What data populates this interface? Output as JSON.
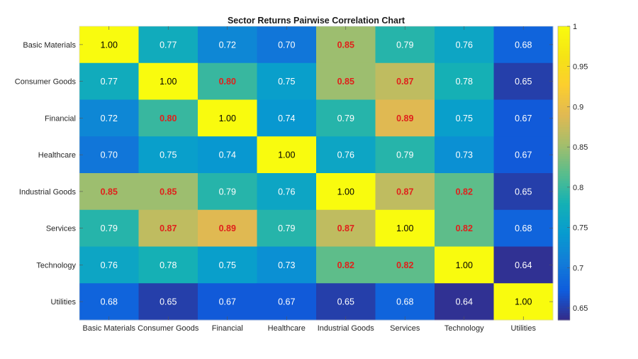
{
  "chart_data": {
    "type": "heatmap",
    "title": "Sector Returns Pairwise Correlation Chart",
    "xlabel": "",
    "ylabel": "",
    "x_categories": [
      "Basic Materials",
      "Consumer Goods",
      "Financial",
      "Healthcare",
      "Industrial Goods",
      "Services",
      "Technology",
      "Utilities"
    ],
    "y_categories": [
      "Basic Materials",
      "Consumer Goods",
      "Financial",
      "Healthcare",
      "Industrial Goods",
      "Services",
      "Technology",
      "Utilities"
    ],
    "values": [
      [
        1.0,
        0.77,
        0.72,
        0.7,
        0.85,
        0.79,
        0.76,
        0.68
      ],
      [
        0.77,
        1.0,
        0.8,
        0.75,
        0.85,
        0.87,
        0.78,
        0.65
      ],
      [
        0.72,
        0.8,
        1.0,
        0.74,
        0.79,
        0.89,
        0.75,
        0.67
      ],
      [
        0.7,
        0.75,
        0.74,
        1.0,
        0.76,
        0.79,
        0.73,
        0.67
      ],
      [
        0.85,
        0.85,
        0.79,
        0.76,
        1.0,
        0.87,
        0.82,
        0.65
      ],
      [
        0.79,
        0.87,
        0.89,
        0.79,
        0.87,
        1.0,
        0.82,
        0.68
      ],
      [
        0.76,
        0.78,
        0.75,
        0.73,
        0.82,
        0.82,
        1.0,
        0.64
      ],
      [
        0.68,
        0.65,
        0.67,
        0.67,
        0.65,
        0.68,
        0.64,
        1.0
      ]
    ],
    "labels": [
      [
        "1.00",
        "0.77",
        "0.72",
        "0.70",
        "0.85",
        "0.79",
        "0.76",
        "0.68"
      ],
      [
        "0.77",
        "1.00",
        "0.80",
        "0.75",
        "0.85",
        "0.87",
        "0.78",
        "0.65"
      ],
      [
        "0.72",
        "0.80",
        "1.00",
        "0.74",
        "0.79",
        "0.89",
        "0.75",
        "0.67"
      ],
      [
        "0.70",
        "0.75",
        "0.74",
        "1.00",
        "0.76",
        "0.79",
        "0.73",
        "0.67"
      ],
      [
        "0.85",
        "0.85",
        "0.79",
        "0.76",
        "1.00",
        "0.87",
        "0.82",
        "0.65"
      ],
      [
        "0.79",
        "0.87",
        "0.89",
        "0.79",
        "0.87",
        "1.00",
        "0.82",
        "0.68"
      ],
      [
        "0.76",
        "0.78",
        "0.75",
        "0.73",
        "0.82",
        "0.82",
        "1.00",
        "0.64"
      ],
      [
        "0.68",
        "0.65",
        "0.67",
        "0.67",
        "0.65",
        "0.68",
        "0.64",
        "1.00"
      ]
    ],
    "highlight_threshold": 0.8,
    "colormap": "parula",
    "colorbar": {
      "range": [
        0.635,
        1.0
      ],
      "ticks": [
        0.65,
        0.7,
        0.75,
        0.8,
        0.85,
        0.9,
        0.95,
        1
      ],
      "tick_labels": [
        "0.65",
        "0.7",
        "0.75",
        "0.8",
        "0.85",
        "0.9",
        "0.95",
        "1"
      ],
      "position": "right"
    },
    "colors": {
      "highlight_text": "#e0201b",
      "diagonal_text": "#000000",
      "normal_text": "#ffffff"
    }
  }
}
